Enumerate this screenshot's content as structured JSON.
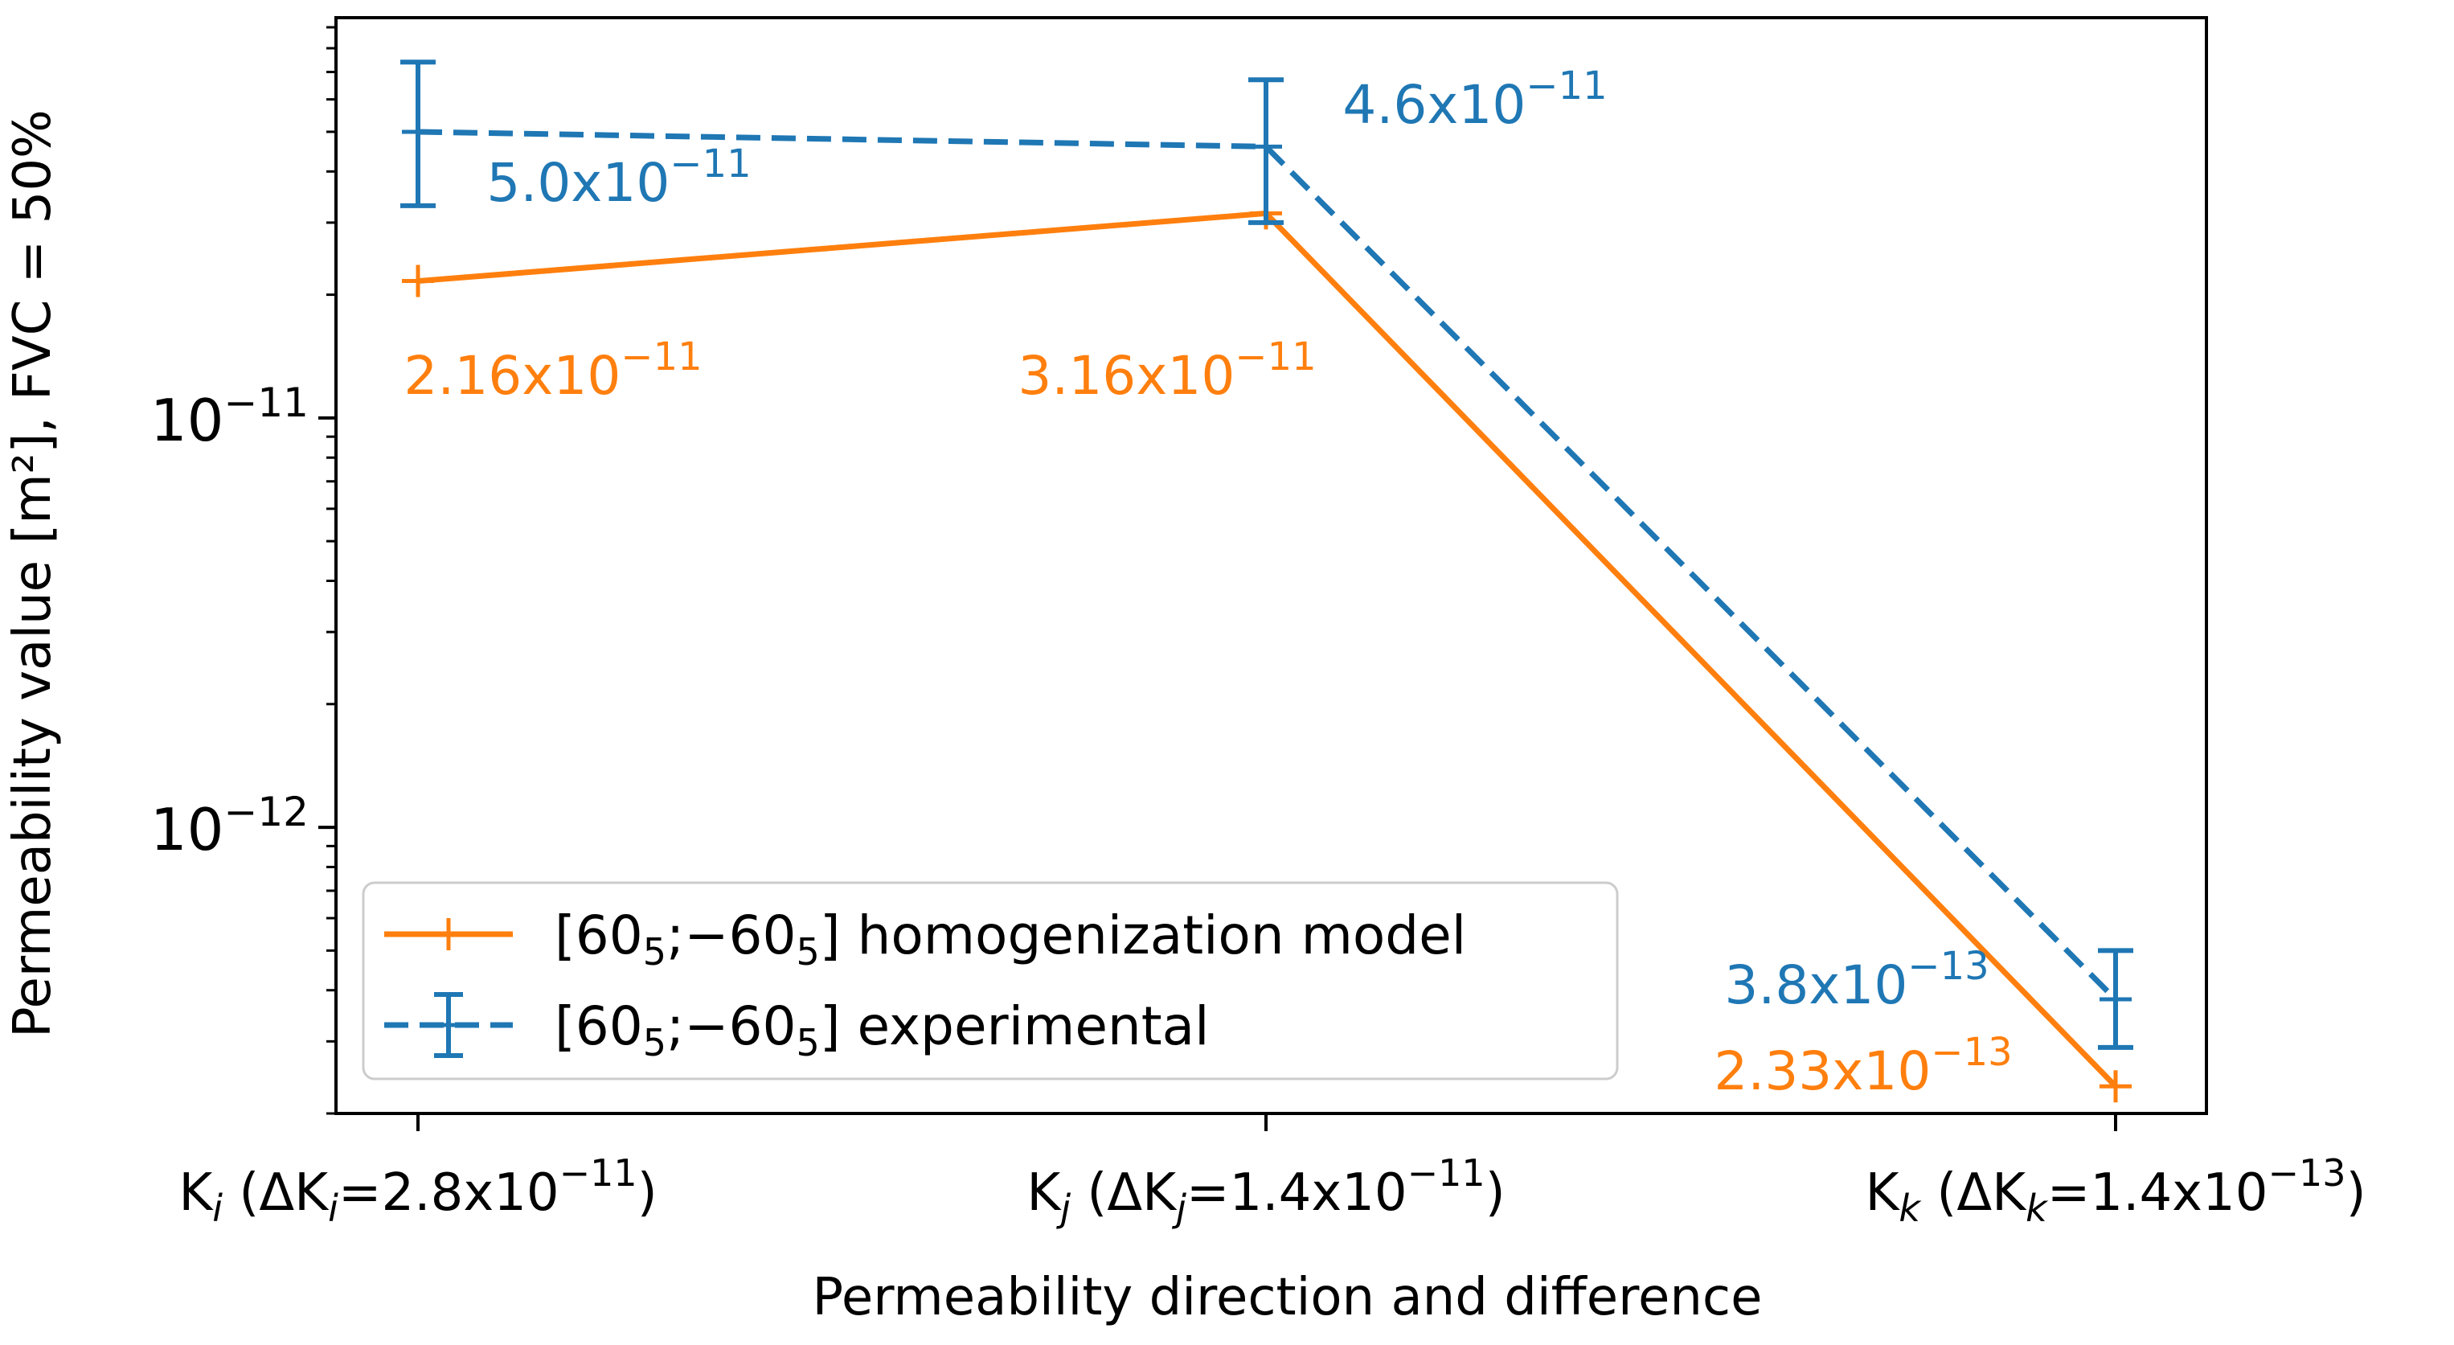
{
  "chart_data": {
    "type": "line",
    "yscale": "log",
    "ylim": [
      2e-13,
      9.5e-11
    ],
    "ylabel": "Permeability value [m²], FVC = 50%",
    "xlabel": "Permeability direction and difference",
    "categories": [
      {
        "sym": "K",
        "sub": "i",
        "delta_open": " (ΔK",
        "eq": "=2.8x10",
        "exp": "−11",
        "close": ")"
      },
      {
        "sym": "K",
        "sub": "j",
        "delta_open": " (ΔK",
        "eq": "=1.4x10",
        "exp": "−11",
        "close": ")"
      },
      {
        "sym": "K",
        "sub": "k",
        "delta_open": " (ΔK",
        "eq": "=1.4x10",
        "exp": "−13",
        "close": ")"
      }
    ],
    "yticks": [
      {
        "value": 1e-11,
        "base": "10",
        "exp": "−11"
      },
      {
        "value": 1e-12,
        "base": "10",
        "exp": "−12"
      }
    ],
    "series": [
      {
        "name": "homogenization",
        "legend_label": {
          "a": "[60",
          "s1": "5",
          "b": ";−60",
          "s2": "5",
          "c": "] homogenization model"
        },
        "color": "#ff7f0e",
        "dash": false,
        "values": [
          2.16e-11,
          3.16e-11,
          2.33e-13
        ],
        "labels": [
          {
            "mant": "2.16x10",
            "exp": "−11"
          },
          {
            "mant": "3.16x10",
            "exp": "−11"
          },
          {
            "mant": "2.33x10",
            "exp": "−13"
          }
        ]
      },
      {
        "name": "experimental",
        "legend_label": {
          "a": "[60",
          "s1": "5",
          "b": ";−60",
          "s2": "5",
          "c": "] experimental"
        },
        "color": "#1f77b4",
        "dash": true,
        "values": [
          5e-11,
          4.6e-11,
          3.8e-13
        ],
        "error_low": [
          3.3e-11,
          3e-11,
          2.9e-13
        ],
        "error_high": [
          7.4e-11,
          6.7e-11,
          5e-13
        ],
        "labels": [
          {
            "mant": "5.0x10",
            "exp": "−11"
          },
          {
            "mant": "4.6x10",
            "exp": "−11"
          },
          {
            "mant": "3.8x10",
            "exp": "−13"
          }
        ]
      }
    ]
  }
}
